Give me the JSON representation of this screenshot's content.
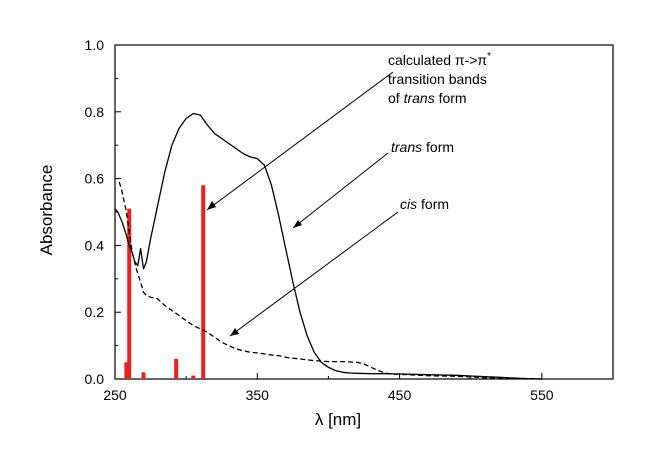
{
  "chart_data": {
    "type": "line",
    "xlabel": "λ [nm]",
    "ylabel": "Absorbance",
    "xlim": [
      250,
      600
    ],
    "ylim": [
      0.0,
      1.0
    ],
    "x_ticks": [
      250,
      350,
      450,
      550
    ],
    "y_ticks": [
      "0.0",
      "0.2",
      "0.4",
      "0.6",
      "0.8",
      "1.0"
    ],
    "grid": false,
    "series": [
      {
        "name": "trans form",
        "style": "solid",
        "color": "#000000",
        "x": [
          250,
          252,
          255,
          258,
          260,
          262,
          264,
          266,
          268,
          270,
          272,
          275,
          280,
          285,
          290,
          295,
          300,
          305,
          310,
          315,
          320,
          325,
          330,
          335,
          340,
          345,
          350,
          355,
          360,
          365,
          370,
          375,
          380,
          385,
          390,
          395,
          400,
          405,
          410,
          415,
          420,
          430,
          440,
          450,
          460,
          470,
          480,
          490,
          500,
          510,
          520,
          530,
          540,
          550
        ],
        "y": [
          0.51,
          0.5,
          0.47,
          0.43,
          0.4,
          0.38,
          0.35,
          0.34,
          0.39,
          0.33,
          0.35,
          0.42,
          0.52,
          0.62,
          0.7,
          0.75,
          0.78,
          0.795,
          0.79,
          0.76,
          0.735,
          0.72,
          0.705,
          0.69,
          0.675,
          0.665,
          0.66,
          0.64,
          0.58,
          0.49,
          0.39,
          0.29,
          0.2,
          0.13,
          0.08,
          0.05,
          0.035,
          0.025,
          0.02,
          0.018,
          0.017,
          0.016,
          0.016,
          0.015,
          0.014,
          0.013,
          0.012,
          0.011,
          0.009,
          0.007,
          0.005,
          0.003,
          0.001,
          0.0
        ]
      },
      {
        "name": "cis form",
        "style": "dashed",
        "color": "#000000",
        "x": [
          253,
          255,
          258,
          260,
          262,
          265,
          268,
          270,
          272,
          275,
          280,
          285,
          290,
          295,
          300,
          305,
          310,
          315,
          320,
          325,
          330,
          335,
          340,
          345,
          350,
          355,
          360,
          365,
          370,
          380,
          390,
          400,
          410,
          420,
          425,
          430,
          435,
          440,
          445,
          450,
          460,
          470,
          480,
          490,
          500,
          510,
          520,
          530,
          540,
          550
        ],
        "y": [
          0.59,
          0.56,
          0.5,
          0.44,
          0.38,
          0.33,
          0.29,
          0.26,
          0.25,
          0.245,
          0.24,
          0.22,
          0.205,
          0.19,
          0.175,
          0.16,
          0.15,
          0.14,
          0.125,
          0.11,
          0.1,
          0.09,
          0.085,
          0.08,
          0.078,
          0.075,
          0.072,
          0.07,
          0.065,
          0.06,
          0.055,
          0.052,
          0.052,
          0.05,
          0.045,
          0.035,
          0.025,
          0.018,
          0.015,
          0.014,
          0.012,
          0.01,
          0.009,
          0.008,
          0.006,
          0.004,
          0.003,
          0.002,
          0.001,
          0.0
        ]
      }
    ],
    "bars": {
      "name": "calculated π->π* transition bands of trans form",
      "color": "#e8231f",
      "x": [
        258,
        260,
        270,
        293,
        305,
        312
      ],
      "y": [
        0.05,
        0.51,
        0.02,
        0.06,
        0.01,
        0.58
      ]
    },
    "annotations": {
      "calculated": {
        "lines": [
          "calculated π->π",
          "transition bands"
        ],
        "superscript": "*",
        "last_prefix": "of ",
        "last_italic": "trans",
        "last_suffix": " form"
      },
      "trans": {
        "italic": "trans",
        "suffix": " form"
      },
      "cis": {
        "italic": "cis",
        "suffix": " form"
      }
    }
  }
}
